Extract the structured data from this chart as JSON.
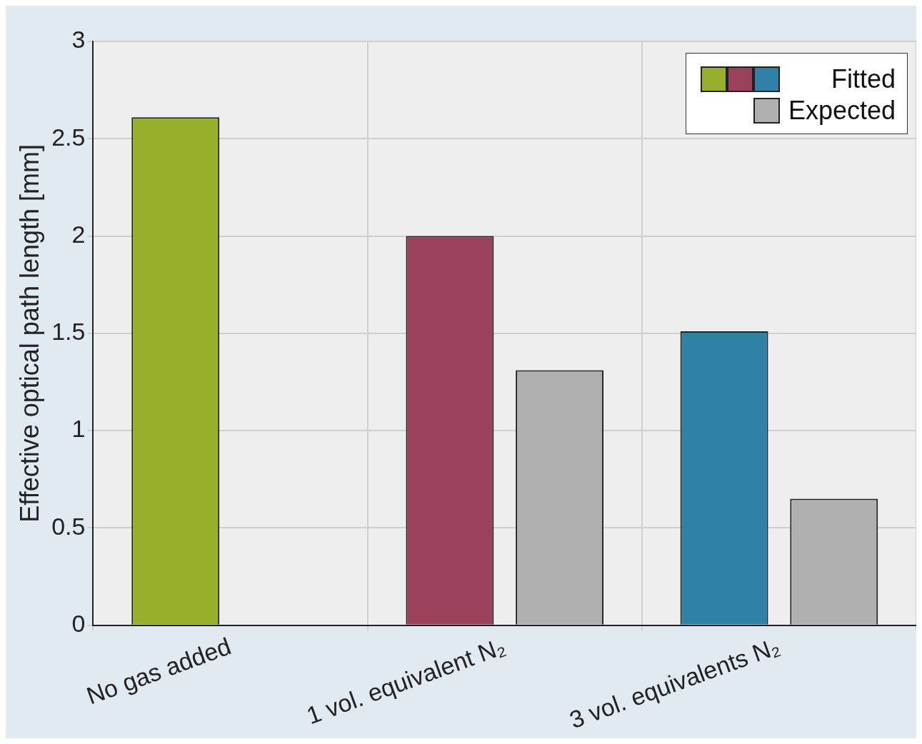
{
  "chart_data": {
    "type": "bar",
    "ylabel": "Effective optical path length [mm]",
    "categories": [
      "No gas added",
      "1 vol. equivalent N₂",
      "3 vol. equivalents N₂"
    ],
    "series": [
      {
        "name": "Fitted",
        "colors": [
          "#96b02a",
          "#9a415c",
          "#2f81a6"
        ],
        "values": [
          2.61,
          2.0,
          1.51
        ]
      },
      {
        "name": "Expected",
        "color": "#b0b0b0",
        "values": [
          null,
          1.31,
          0.65
        ]
      }
    ],
    "ylim": [
      0,
      3
    ],
    "yticks": [
      0,
      0.5,
      1,
      1.5,
      2,
      2.5,
      3
    ],
    "grid": true,
    "legend": "top right"
  }
}
